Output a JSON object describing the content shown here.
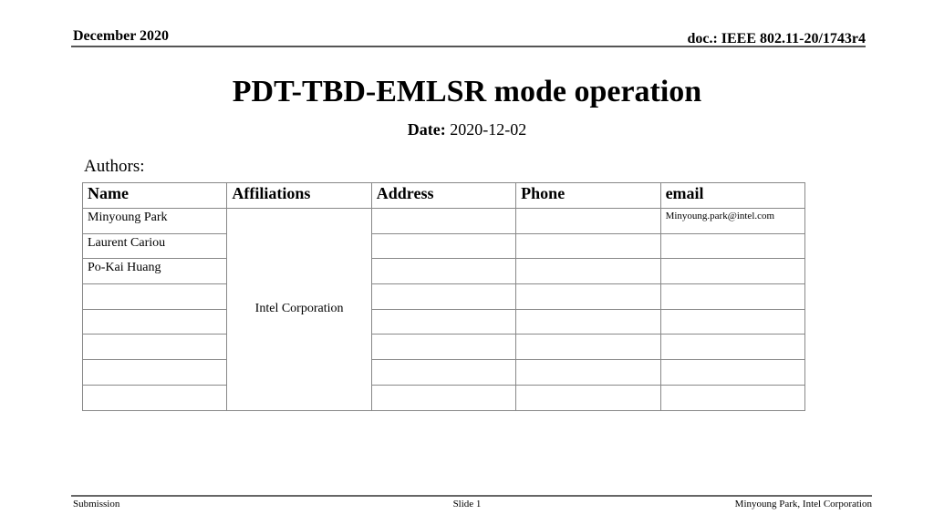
{
  "header": {
    "date": "December 2020",
    "doc": "doc.: IEEE 802.11-20/1743r4"
  },
  "title": "PDT-TBD-EMLSR mode operation",
  "date_label": "Date:",
  "date_value": "2020-12-02",
  "authors_label": "Authors:",
  "table": {
    "headers": [
      "Name",
      "Affiliations",
      "Address",
      "Phone",
      "email"
    ],
    "affiliation": "Intel Corporation",
    "rows": [
      {
        "name": "Minyoung Park",
        "email": "Minyoung.park@intel.com"
      },
      {
        "name": "Laurent Cariou",
        "email": ""
      },
      {
        "name": "Po-Kai Huang",
        "email": ""
      },
      {
        "name": "",
        "email": ""
      },
      {
        "name": "",
        "email": ""
      },
      {
        "name": "",
        "email": ""
      },
      {
        "name": "",
        "email": ""
      },
      {
        "name": "",
        "email": ""
      }
    ]
  },
  "footer": {
    "left": "Submission",
    "center": "Slide 1",
    "right": "Minyoung Park, Intel Corporation"
  }
}
